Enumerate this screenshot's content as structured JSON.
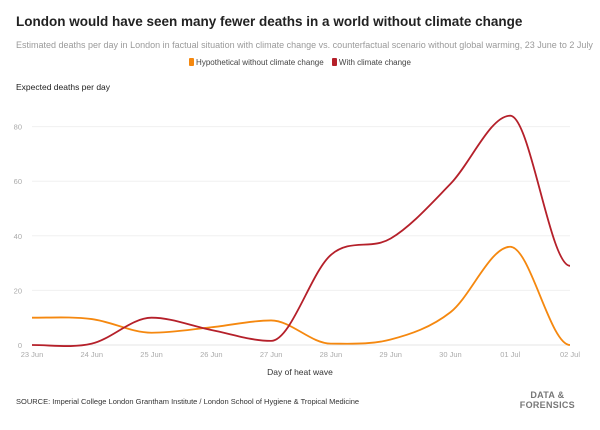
{
  "chart_data": {
    "type": "line",
    "title": "London would have seen many fewer deaths in a world without climate change",
    "subtitle": "Estimated deaths per day in London in factual situation with climate change vs. counterfactual scenario without global warming, 23 June to 2 July",
    "xlabel": "Day of heat wave",
    "ylabel": "Expected deaths per day",
    "categories": [
      "23 Jun",
      "24 Jun",
      "25 Jun",
      "26 Jun",
      "27 Jun",
      "28 Jun",
      "29 Jun",
      "30 Jun",
      "01 Jul",
      "02 Jul"
    ],
    "yticks": [
      0,
      20,
      40,
      60,
      80
    ],
    "ylim": [
      0,
      90
    ],
    "grid": true,
    "legend_position": "top-center",
    "series": [
      {
        "name": "Hypothetical without climate change",
        "color": "#f5880f",
        "values": [
          10,
          9.5,
          4.5,
          6.5,
          9,
          0.5,
          2,
          12,
          36,
          0
        ]
      },
      {
        "name": "With climate change",
        "color": "#b5202a",
        "values": [
          0,
          0.5,
          10,
          5.5,
          1.5,
          33,
          39,
          59,
          84,
          29
        ]
      }
    ]
  },
  "source": "SOURCE: Imperial College London Grantham Institute / London School of Hygiene & Tropical Medicine",
  "logo": {
    "line1": "DATA &",
    "line2": "FORENSICS"
  }
}
